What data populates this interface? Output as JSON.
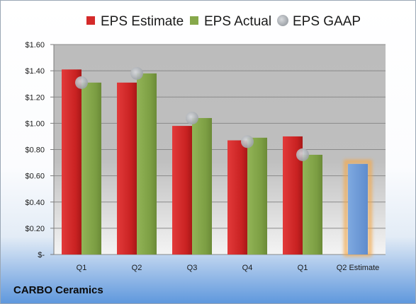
{
  "chart_data": {
    "type": "bar",
    "categories": [
      "Q1",
      "Q2",
      "Q3",
      "Q4",
      "Q1",
      "Q2 Estimate"
    ],
    "series": [
      {
        "name": "EPS Estimate",
        "type": "bar",
        "color": "#d42a2a",
        "values": [
          1.41,
          1.31,
          0.98,
          0.87,
          0.9,
          null
        ]
      },
      {
        "name": "EPS Actual",
        "type": "bar",
        "color": "#86a84a",
        "values": [
          1.31,
          1.38,
          1.04,
          0.89,
          0.76,
          null
        ]
      },
      {
        "name": "EPS GAAP",
        "type": "scatter",
        "color": "#b3b7bd",
        "values": [
          1.31,
          1.38,
          1.04,
          0.86,
          0.76,
          null
        ]
      }
    ],
    "next_estimate": {
      "category": "Q2 Estimate",
      "value": 0.69,
      "color": "#6f9bd8",
      "glow": "#f3a94d"
    },
    "ylim": [
      0,
      1.6
    ],
    "yticks": [
      {
        "value": 1.6,
        "label": "$1.60"
      },
      {
        "value": 1.4,
        "label": "$1.40"
      },
      {
        "value": 1.2,
        "label": "$1.20"
      },
      {
        "value": 1.0,
        "label": "$1.00"
      },
      {
        "value": 0.8,
        "label": "$0.80"
      },
      {
        "value": 0.6,
        "label": "$0.60"
      },
      {
        "value": 0.4,
        "label": "$0.40"
      },
      {
        "value": 0.2,
        "label": "$0.20"
      },
      {
        "value": 0,
        "label": "$-"
      }
    ],
    "legend_position": "top",
    "grid": true
  },
  "company": "CARBO Ceramics"
}
